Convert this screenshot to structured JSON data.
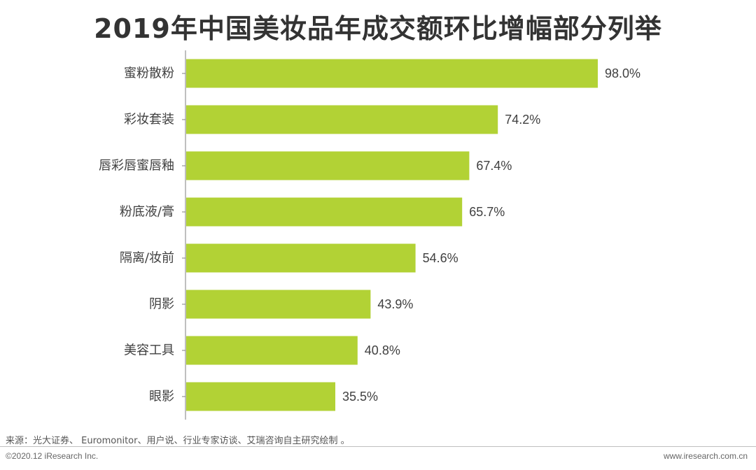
{
  "chart_data": {
    "type": "bar",
    "orientation": "horizontal",
    "title": "2019年中国美妆品年成交额环比增幅部分列举",
    "categories": [
      "蜜粉散粉",
      "彩妆套装",
      "唇彩唇蜜唇釉",
      "粉底液/膏",
      "隔离/妆前",
      "阴影",
      "美容工具",
      "眼影"
    ],
    "values": [
      98.0,
      74.2,
      67.4,
      65.7,
      54.6,
      43.9,
      40.8,
      35.5
    ],
    "value_labels": [
      "98.0%",
      "74.2%",
      "67.4%",
      "65.7%",
      "54.6%",
      "43.9%",
      "40.8%",
      "35.5%"
    ],
    "unit": "%",
    "xlim": [
      0,
      100
    ],
    "grid": false,
    "bar_color": "#B2D235"
  },
  "footer": {
    "source": "来源：光大证券、 Euromonitor、用户说、行业专家访谈、艾瑞咨询自主研究绘制 。",
    "copyright": "©2020.12 iResearch Inc.",
    "website": "www.iresearch.com.cn"
  }
}
